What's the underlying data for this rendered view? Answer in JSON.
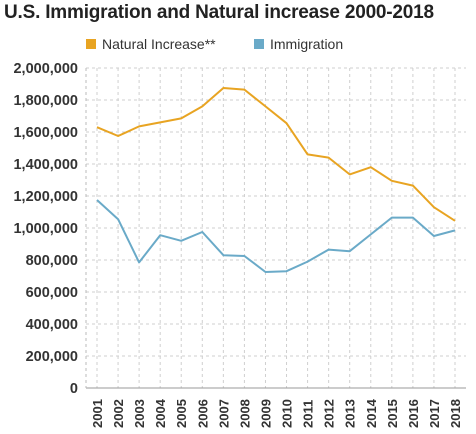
{
  "chart_data": {
    "type": "line",
    "title": "U.S. Immigration and Natural increase 2000-2018",
    "xlabel": "",
    "ylabel": "",
    "x": [
      "2001",
      "2002",
      "2003",
      "2004",
      "2005",
      "2006",
      "2007",
      "2008",
      "2009",
      "2010",
      "2011",
      "2012",
      "2013",
      "2014",
      "2015",
      "2016",
      "2017",
      "2018"
    ],
    "ylim": [
      0,
      2000000
    ],
    "yticks": [
      "0",
      "200,000",
      "400,000",
      "600,000",
      "800,000",
      "1,000,000",
      "1,200,000",
      "1,400,000",
      "1,600,000",
      "1,800,000",
      "2,000,000"
    ],
    "grid": true,
    "legend": "top",
    "series": [
      {
        "name": "Natural Increase**",
        "color": "#E8A422",
        "values": [
          1630000,
          1575000,
          1635000,
          1660000,
          1685000,
          1760000,
          1875000,
          1865000,
          1760000,
          1655000,
          1460000,
          1440000,
          1335000,
          1380000,
          1295000,
          1265000,
          1130000,
          1045000
        ]
      },
      {
        "name": "Immigration",
        "color": "#6AAAC8",
        "values": [
          1175000,
          1055000,
          785000,
          955000,
          920000,
          975000,
          830000,
          825000,
          725000,
          730000,
          790000,
          865000,
          855000,
          960000,
          1065000,
          1065000,
          950000,
          985000
        ]
      }
    ]
  }
}
